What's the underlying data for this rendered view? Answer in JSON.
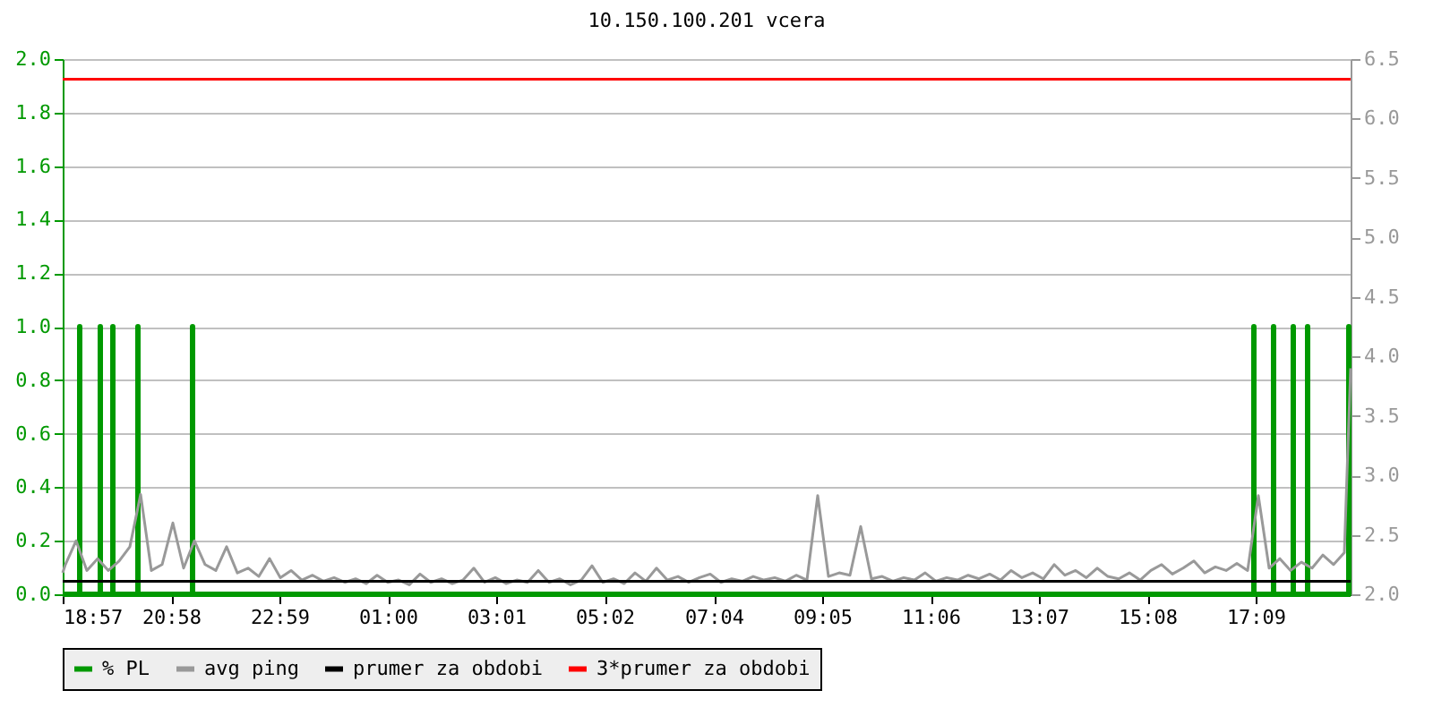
{
  "chart_data": {
    "type": "line",
    "title": "10.150.100.201 vcera",
    "xlim": [
      "--01-01T18:57",
      "--01-02T18:55"
    ],
    "xticks": [
      {
        "value": "--01-01T18:57",
        "label": "18:57"
      },
      {
        "value": "--01-01T20:58",
        "label": "20:58"
      },
      {
        "value": "--01-01T22:59",
        "label": "22:59"
      },
      {
        "value": "--01-02T01:00",
        "label": "01:00"
      },
      {
        "value": "--01-02T03:01",
        "label": "03:01"
      },
      {
        "value": "--01-02T05:02",
        "label": "05:02"
      },
      {
        "value": "--01-02T07:04",
        "label": "07:04"
      },
      {
        "value": "--01-02T09:05",
        "label": "09:05"
      },
      {
        "value": "--01-02T11:06",
        "label": "11:06"
      },
      {
        "value": "--01-02T13:07",
        "label": "13:07"
      },
      {
        "value": "--01-02T15:08",
        "label": "15:08"
      },
      {
        "value": "--01-02T17:09",
        "label": "17:09"
      }
    ],
    "ylim": [
      0,
      2
    ],
    "yticks": [
      {
        "value": 0,
        "label": "0.0"
      },
      0.2,
      0.4,
      0.6,
      0.8,
      {
        "value": 1,
        "label": "1.0"
      },
      1.2,
      1.4,
      1.6,
      1.8,
      {
        "value": 2,
        "label": "2.0"
      }
    ],
    "y2lim": [
      2,
      6.5
    ],
    "y2ticks": [
      {
        "value": 2,
        "label": "2.0"
      },
      2.5,
      {
        "value": 3,
        "label": "3.0"
      },
      3.5,
      {
        "value": 4,
        "label": "4.0"
      },
      4.5,
      {
        "value": 5,
        "label": "5.0"
      },
      5.5,
      {
        "value": 6,
        "label": "6.0"
      },
      6.5
    ],
    "grid": "y",
    "legend": "bottom",
    "series": [
      {
        "name": "% PL",
        "color": "#009900",
        "x": [
          "--01-01T18:57",
          "--01-01T19:16",
          "--01-01T19:16",
          "--01-01T19:16",
          "--01-01T19:39",
          "--01-01T19:39",
          "--01-01T19:39",
          "--01-01T19:53",
          "--01-01T19:53",
          "--01-01T19:53",
          "--01-01T20:21",
          "--01-01T20:21",
          "--01-01T20:21",
          "--01-01T21:22",
          "--01-01T21:22",
          "--01-01T21:22",
          "--01-02T17:07",
          "--01-02T17:07",
          "--01-02T17:07",
          "--01-02T17:29",
          "--01-02T17:29",
          "--01-02T17:29",
          "--01-02T17:51",
          "--01-02T17:51",
          "--01-02T17:51",
          "--01-02T18:07",
          "--01-02T18:07",
          "--01-02T18:07",
          "--01-02T18:53",
          "--01-02T18:53",
          "--01-02T18:53",
          "--01-02T18:55"
        ],
        "values": [
          0,
          0,
          1,
          0,
          0,
          1,
          0,
          0,
          1,
          0,
          0,
          1,
          0,
          0,
          1,
          0,
          0,
          1,
          0,
          0,
          1,
          0,
          0,
          1,
          0,
          0,
          1,
          0,
          0,
          1,
          0,
          0
        ]
      },
      {
        "name": "avg ping",
        "color": "#999999",
        "axis": "y2",
        "x": [
          "--01-01T18:57",
          "--01-01T19:00",
          "--01-01T19:12",
          "--01-01T19:24",
          "--01-01T19:36",
          "--01-01T19:48",
          "--01-01T20:00",
          "--01-01T20:12",
          "--01-01T20:24",
          "--01-01T20:36",
          "--01-01T20:48",
          "--01-01T21:00",
          "--01-01T21:12",
          "--01-01T21:24",
          "--01-01T21:36",
          "--01-01T21:48",
          "--01-01T22:00",
          "--01-01T22:12",
          "--01-01T22:24",
          "--01-01T22:36",
          "--01-01T22:48",
          "--01-01T23:00",
          "--01-01T23:12",
          "--01-01T23:24",
          "--01-01T23:36",
          "--01-01T23:48",
          "--01-02T00:00",
          "--01-02T00:12",
          "--01-02T00:24",
          "--01-02T00:36",
          "--01-02T00:48",
          "--01-02T01:00",
          "--01-02T01:12",
          "--01-02T01:24",
          "--01-02T01:36",
          "--01-02T01:48",
          "--01-02T02:00",
          "--01-02T02:12",
          "--01-02T02:24",
          "--01-02T02:36",
          "--01-02T02:48",
          "--01-02T03:00",
          "--01-02T03:12",
          "--01-02T03:24",
          "--01-02T03:36",
          "--01-02T03:48",
          "--01-02T04:00",
          "--01-02T04:12",
          "--01-02T04:24",
          "--01-02T04:36",
          "--01-02T04:48",
          "--01-02T05:00",
          "--01-02T05:12",
          "--01-02T05:24",
          "--01-02T05:36",
          "--01-02T05:48",
          "--01-02T06:00",
          "--01-02T06:12",
          "--01-02T06:24",
          "--01-02T06:36",
          "--01-02T06:48",
          "--01-02T07:00",
          "--01-02T07:12",
          "--01-02T07:24",
          "--01-02T07:36",
          "--01-02T07:48",
          "--01-02T08:00",
          "--01-02T08:12",
          "--01-02T08:24",
          "--01-02T08:36",
          "--01-02T08:48",
          "--01-02T09:00",
          "--01-02T09:12",
          "--01-02T09:24",
          "--01-02T09:36",
          "--01-02T09:48",
          "--01-02T10:00",
          "--01-02T10:12",
          "--01-02T10:24",
          "--01-02T10:36",
          "--01-02T10:48",
          "--01-02T11:00",
          "--01-02T11:12",
          "--01-02T11:24",
          "--01-02T11:36",
          "--01-02T11:48",
          "--01-02T12:00",
          "--01-02T12:12",
          "--01-02T12:24",
          "--01-02T12:36",
          "--01-02T12:48",
          "--01-02T13:00",
          "--01-02T13:12",
          "--01-02T13:24",
          "--01-02T13:36",
          "--01-02T13:48",
          "--01-02T14:00",
          "--01-02T14:12",
          "--01-02T14:24",
          "--01-02T14:36",
          "--01-02T14:48",
          "--01-02T15:00",
          "--01-02T15:12",
          "--01-02T15:24",
          "--01-02T15:36",
          "--01-02T15:48",
          "--01-02T16:00",
          "--01-02T16:12",
          "--01-02T16:24",
          "--01-02T16:36",
          "--01-02T16:48",
          "--01-02T17:00",
          "--01-02T17:12",
          "--01-02T17:24",
          "--01-02T17:36",
          "--01-02T17:48",
          "--01-02T18:00",
          "--01-02T18:12",
          "--01-02T18:24",
          "--01-02T18:36",
          "--01-02T18:48",
          "--01-02T18:55"
        ],
        "values": [
          2.18,
          2.25,
          2.45,
          2.2,
          2.3,
          2.2,
          2.28,
          2.4,
          2.84,
          2.2,
          2.25,
          2.6,
          2.22,
          2.45,
          2.25,
          2.2,
          2.4,
          2.18,
          2.22,
          2.15,
          2.3,
          2.14,
          2.2,
          2.12,
          2.16,
          2.11,
          2.14,
          2.1,
          2.13,
          2.09,
          2.16,
          2.1,
          2.12,
          2.08,
          2.17,
          2.1,
          2.13,
          2.09,
          2.12,
          2.22,
          2.1,
          2.14,
          2.09,
          2.12,
          2.1,
          2.2,
          2.1,
          2.13,
          2.08,
          2.12,
          2.24,
          2.1,
          2.13,
          2.09,
          2.18,
          2.11,
          2.22,
          2.12,
          2.15,
          2.1,
          2.14,
          2.17,
          2.1,
          2.13,
          2.11,
          2.15,
          2.12,
          2.14,
          2.11,
          2.16,
          2.12,
          2.83,
          2.15,
          2.18,
          2.16,
          2.57,
          2.13,
          2.15,
          2.11,
          2.14,
          2.12,
          2.18,
          2.11,
          2.14,
          2.12,
          2.16,
          2.13,
          2.17,
          2.12,
          2.2,
          2.14,
          2.18,
          2.13,
          2.25,
          2.16,
          2.2,
          2.14,
          2.22,
          2.15,
          2.13,
          2.18,
          2.12,
          2.2,
          2.25,
          2.17,
          2.22,
          2.28,
          2.18,
          2.23,
          2.2,
          2.26,
          2.2,
          2.83,
          2.22,
          2.3,
          2.2,
          2.27,
          2.22,
          2.33,
          2.25,
          2.35,
          3.9
        ]
      },
      {
        "name": "prumer za obdobi",
        "color": "#000000",
        "axis": "y2",
        "x": [
          "--01-01T18:57",
          "--01-02T18:55"
        ],
        "values": [
          2.11,
          2.11
        ]
      },
      {
        "name": "3*prumer za obdobi",
        "color": "#ff0000",
        "axis": "y2",
        "x": [
          "--01-01T18:57",
          "--01-02T18:55"
        ],
        "values": [
          6.33,
          6.33
        ]
      }
    ]
  }
}
